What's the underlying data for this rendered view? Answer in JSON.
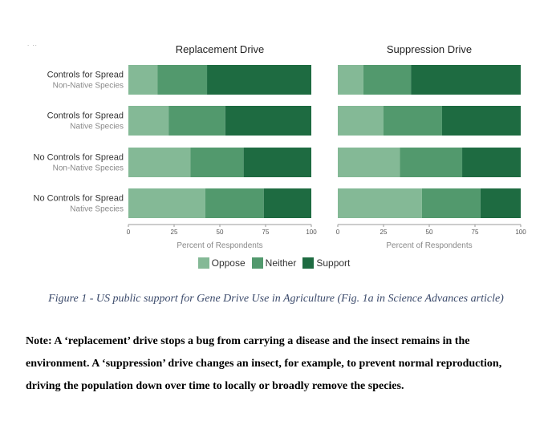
{
  "chart_data": {
    "type": "bar",
    "stacked": true,
    "orientation": "horizontal",
    "xlabel": "Percent of Respondents",
    "xlim": [
      0,
      100
    ],
    "xticks": [
      "0",
      "25",
      "50",
      "75",
      "100"
    ],
    "category_lines": [
      [
        "Controls for Spread",
        "Non-Native Species"
      ],
      [
        "Controls for Spread",
        "Native Species"
      ],
      [
        "No Controls for Spread",
        "Non-Native Species"
      ],
      [
        "No Controls for Spread",
        "Native Species"
      ]
    ],
    "panels": [
      {
        "title": "Replacement Drive",
        "series": [
          {
            "name": "Oppose",
            "values": [
              16,
              22,
              34,
              42
            ]
          },
          {
            "name": "Neither",
            "values": [
              27,
              31,
              29,
              32
            ]
          },
          {
            "name": "Support",
            "values": [
              57,
              47,
              37,
              26
            ]
          }
        ]
      },
      {
        "title": "Suppression Drive",
        "series": [
          {
            "name": "Oppose",
            "values": [
              14,
              25,
              34,
              46
            ]
          },
          {
            "name": "Neither",
            "values": [
              26,
              32,
              34,
              32
            ]
          },
          {
            "name": "Support",
            "values": [
              60,
              43,
              32,
              22
            ]
          }
        ]
      }
    ],
    "legend": [
      "Oppose",
      "Neither",
      "Support"
    ],
    "legend_position": "bottom-center",
    "grid": false,
    "colors": {
      "Oppose": "#84b996",
      "Neither": "#52996d",
      "Support": "#1e6b41"
    }
  },
  "figure_caption": "Figure 1 - US public support for Gene Drive Use in Agriculture (Fig. 1a in Science Advances article)",
  "note": "Note: A ‘replacement’ drive stops a bug from carrying a disease and the insect remains in the environment. A ‘suppression’ drive changes an insect, for example, to prevent normal reproduction, driving the population down over time to locally or broadly remove the species."
}
